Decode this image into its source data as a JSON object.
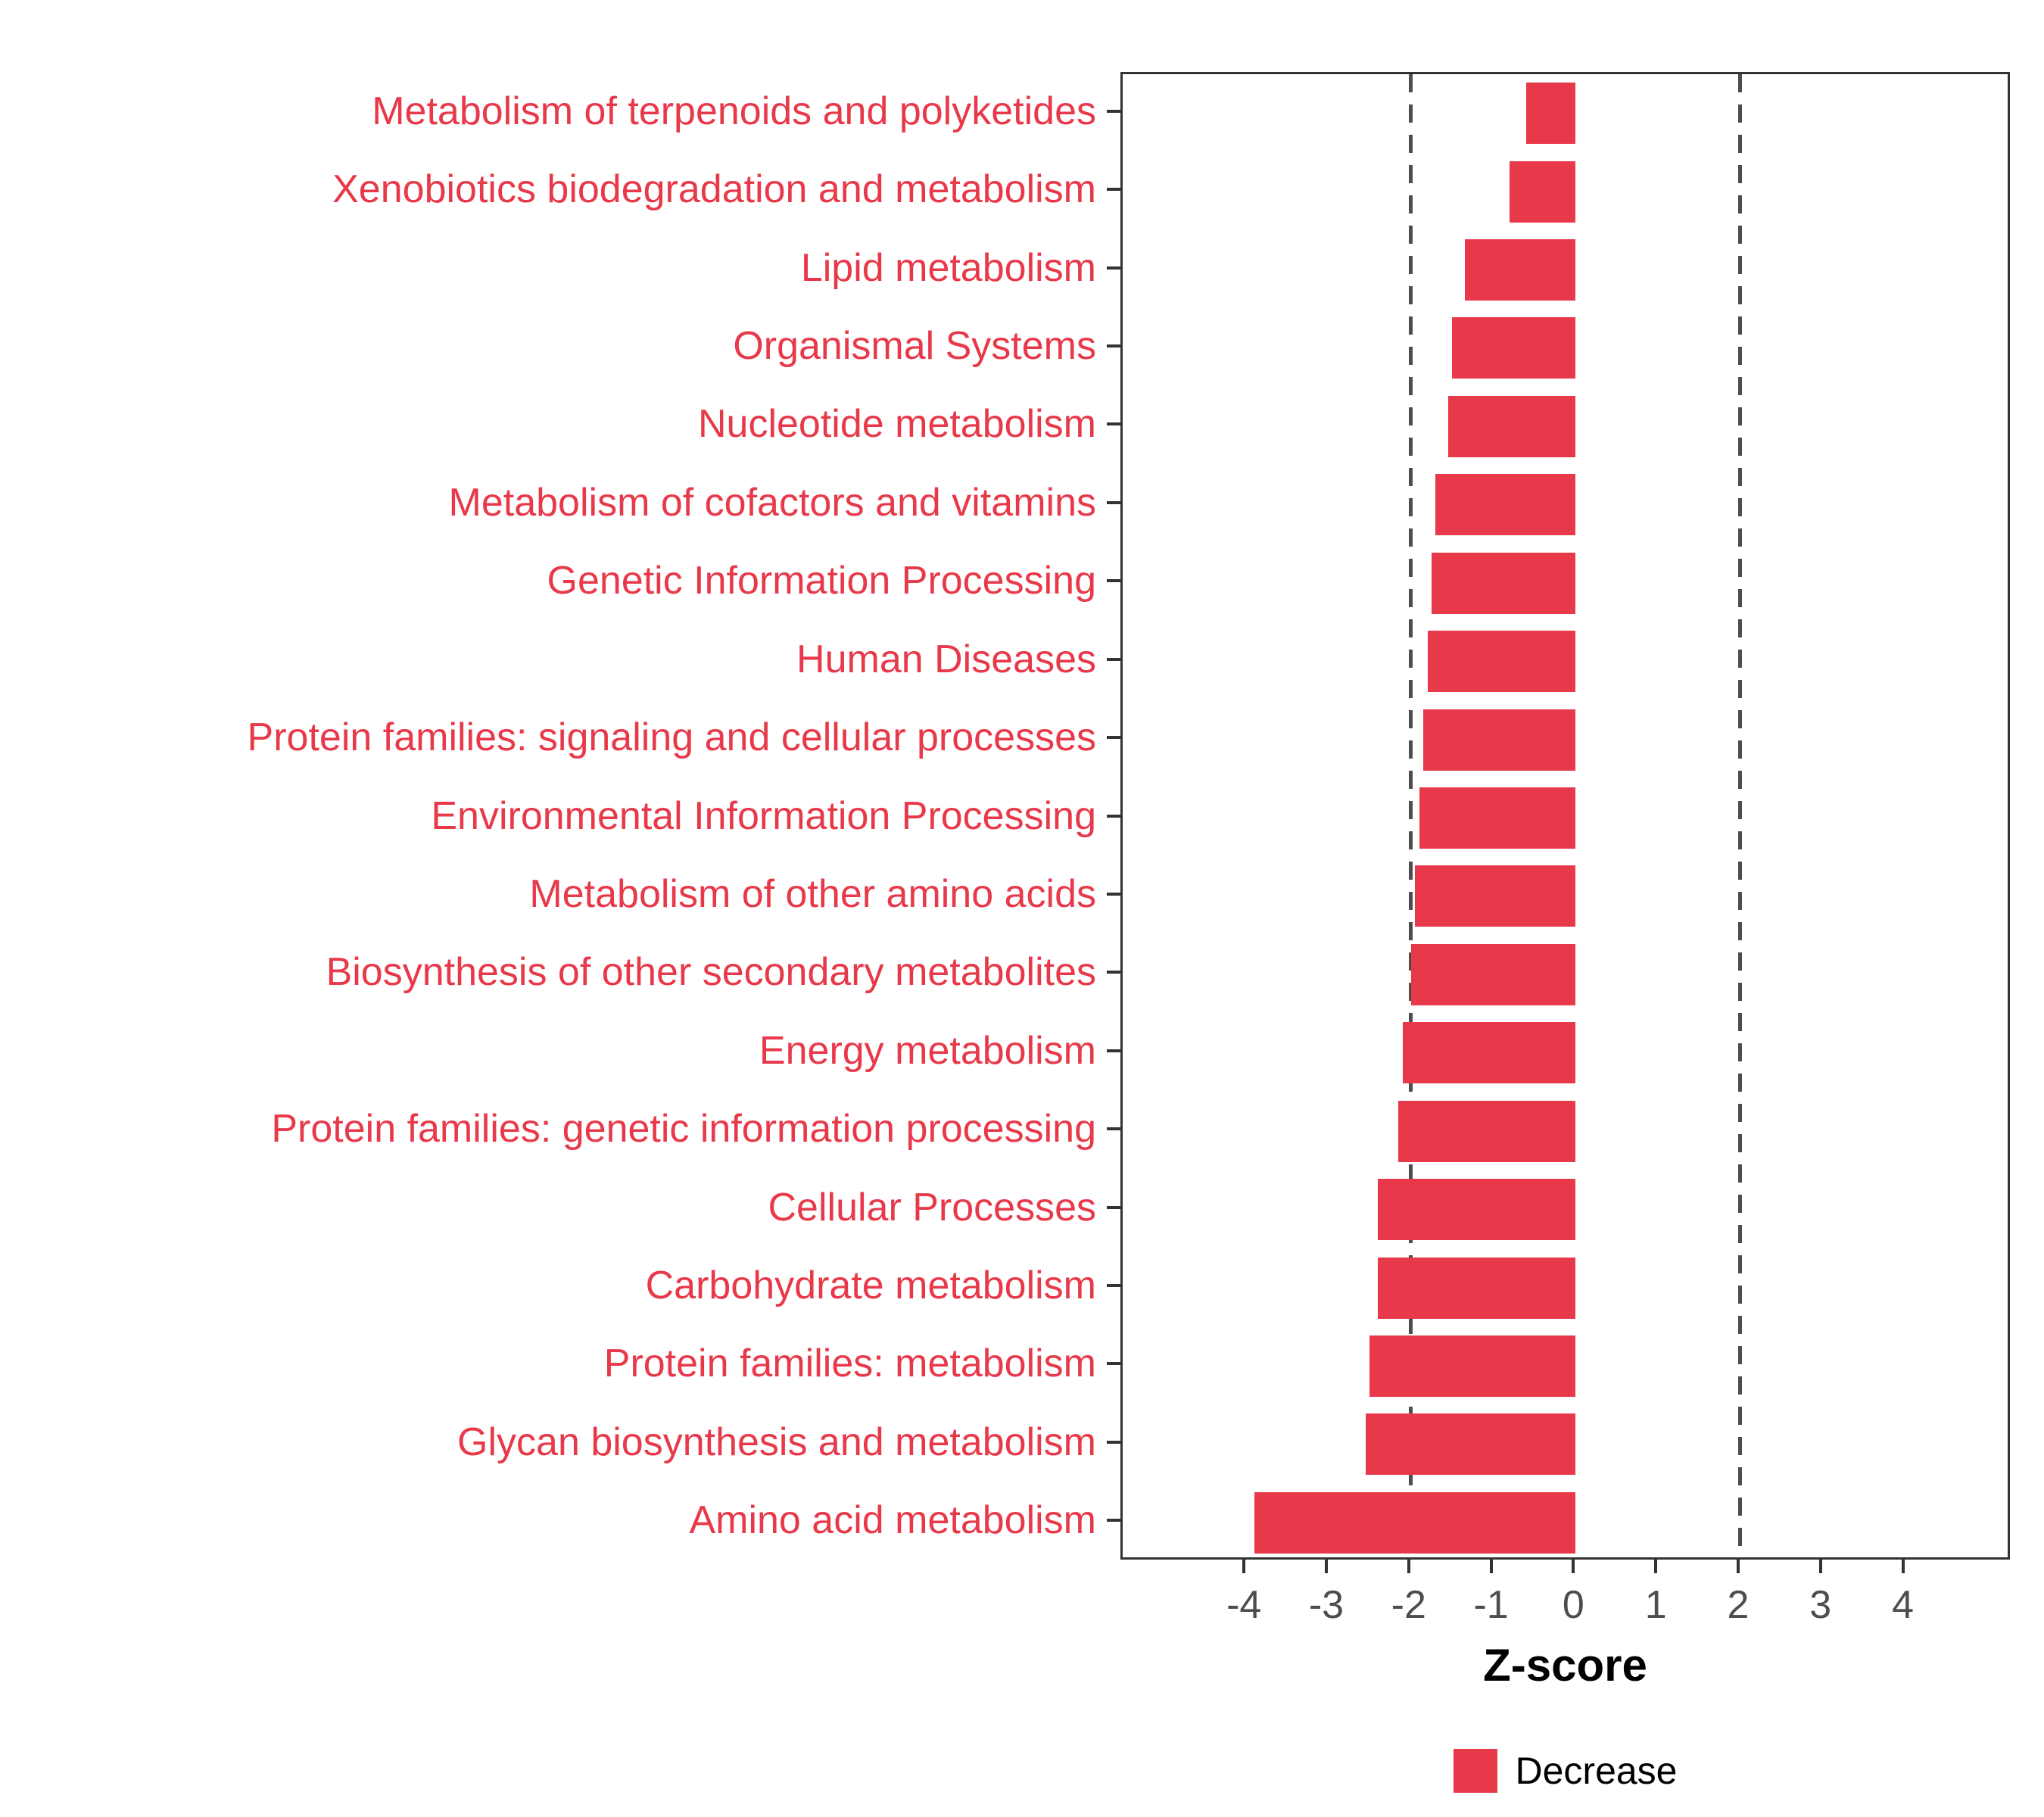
{
  "chart_data": {
    "type": "bar",
    "orientation": "horizontal",
    "title": "",
    "xlabel": "Z-score",
    "ylabel": "",
    "xlim": [
      -5.5,
      5.3
    ],
    "xticks": [
      -4,
      -3,
      -2,
      -1,
      0,
      1,
      2,
      3,
      4
    ],
    "reference_lines": [
      -2,
      2
    ],
    "grid": false,
    "legend_position": "bottom",
    "categories": [
      "Metabolism of terpenoids and polyketides",
      "Xenobiotics biodegradation and metabolism",
      "Lipid metabolism",
      "Organismal Systems",
      "Nucleotide metabolism",
      "Metabolism of cofactors and vitamins",
      "Genetic Information Processing",
      "Human Diseases",
      "Protein families: signaling and cellular processes",
      "Environmental Information Processing",
      "Metabolism of other amino acids",
      "Biosynthesis of other secondary metabolites",
      "Energy metabolism",
      "Protein families: genetic information processing",
      "Cellular Processes",
      "Carbohydrate metabolism",
      "Protein families: metabolism",
      "Glycan biosynthesis and metabolism",
      "Amino acid metabolism"
    ],
    "values": [
      -0.6,
      -0.8,
      -1.35,
      -1.5,
      -1.55,
      -1.7,
      -1.75,
      -1.8,
      -1.85,
      -1.9,
      -1.95,
      -2.0,
      -2.1,
      -2.15,
      -2.4,
      -2.4,
      -2.5,
      -2.55,
      -3.9
    ],
    "colors": {
      "bar": "#e8394a",
      "category_label": "#e8394a",
      "axis_text": "#4d4d4d",
      "reference_line": "#4d4d4d",
      "panel_border": "#333333",
      "tick_mark": "#333333"
    },
    "legend": {
      "items": [
        {
          "label": "Decrease",
          "color": "#e8394a"
        }
      ]
    }
  }
}
